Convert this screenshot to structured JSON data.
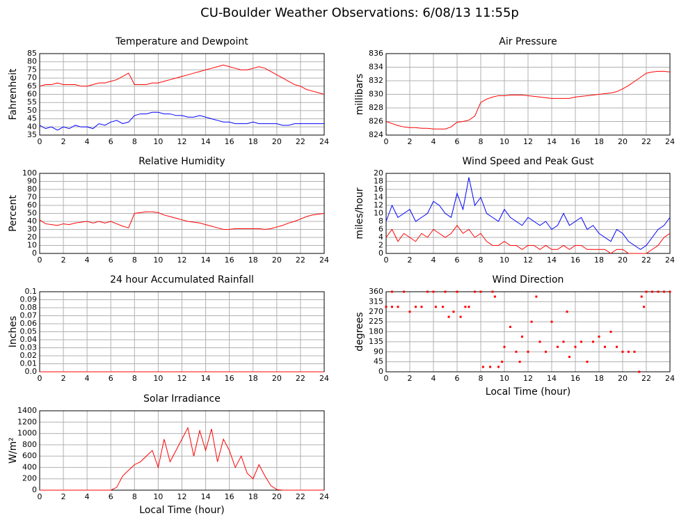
{
  "title": "CU-Boulder Weather Observations: 6/08/13 11:55p",
  "chart_data": [
    {
      "type": "line",
      "title": "Temperature and Dewpoint",
      "ylabel": "Fahrenheit",
      "x": [
        0,
        0.5,
        1,
        1.5,
        2,
        2.5,
        3,
        3.5,
        4,
        4.5,
        5,
        5.5,
        6,
        6.5,
        7,
        7.5,
        8,
        8.5,
        9,
        9.5,
        10,
        10.5,
        11,
        11.5,
        12,
        12.5,
        13,
        13.5,
        14,
        14.5,
        15,
        15.5,
        16,
        16.5,
        17,
        17.5,
        18,
        18.5,
        19,
        19.5,
        20,
        20.5,
        21,
        21.5,
        22,
        22.5,
        23,
        23.5,
        24
      ],
      "series": [
        {
          "color": "#ff0000",
          "values": [
            65,
            66,
            66,
            67,
            66,
            66,
            66,
            65,
            65,
            66,
            67,
            67,
            68,
            69,
            71,
            73,
            66,
            66,
            66,
            67,
            67,
            68,
            69,
            70,
            71,
            72,
            73,
            74,
            75,
            76,
            77,
            78,
            77,
            76,
            75,
            75,
            76,
            77,
            76,
            74,
            72,
            70,
            68,
            66,
            65,
            63,
            62,
            61,
            60
          ]
        },
        {
          "color": "#0000ff",
          "values": [
            41,
            39,
            40,
            38,
            40,
            39,
            41,
            40,
            40,
            39,
            42,
            41,
            43,
            44,
            42,
            43,
            47,
            48,
            48,
            49,
            49,
            48,
            48,
            47,
            47,
            46,
            46,
            47,
            46,
            45,
            44,
            43,
            43,
            42,
            42,
            42,
            43,
            42,
            42,
            42,
            42,
            41,
            41,
            42,
            42,
            42,
            42,
            42,
            42
          ]
        }
      ],
      "xlim": [
        0,
        24
      ],
      "xticks": [
        0,
        2,
        4,
        6,
        8,
        10,
        12,
        14,
        16,
        18,
        20,
        22,
        24
      ],
      "ylim": [
        35,
        85
      ],
      "yticks": [
        35,
        40,
        45,
        50,
        55,
        60,
        65,
        70,
        75,
        80,
        85
      ],
      "grid": true
    },
    {
      "type": "line",
      "title": "Air Pressure",
      "ylabel": "millibars",
      "x": [
        0,
        0.5,
        1,
        1.5,
        2,
        2.5,
        3,
        3.5,
        4,
        4.5,
        5,
        5.5,
        6,
        6.5,
        7,
        7.5,
        8,
        8.5,
        9,
        9.5,
        10,
        10.5,
        11,
        11.5,
        12,
        12.5,
        13,
        13.5,
        14,
        14.5,
        15,
        15.5,
        16,
        16.5,
        17,
        17.5,
        18,
        18.5,
        19,
        19.5,
        20,
        20.5,
        21,
        21.5,
        22,
        22.5,
        23,
        23.5,
        24
      ],
      "series": [
        {
          "color": "#ff0000",
          "values": [
            826,
            825.7,
            825.4,
            825.2,
            825.1,
            825.1,
            825,
            825,
            824.9,
            824.9,
            824.9,
            825.2,
            825.9,
            826,
            826.2,
            826.8,
            828.8,
            829.3,
            829.6,
            829.8,
            829.8,
            829.9,
            829.9,
            829.9,
            829.8,
            829.7,
            829.6,
            829.5,
            829.4,
            829.4,
            829.4,
            829.4,
            829.6,
            829.7,
            829.8,
            829.9,
            830,
            830.1,
            830.2,
            830.4,
            830.8,
            831.3,
            831.9,
            832.5,
            833.1,
            833.3,
            833.4,
            833.4,
            833.3
          ]
        }
      ],
      "xlim": [
        0,
        24
      ],
      "xticks": [
        0,
        2,
        4,
        6,
        8,
        10,
        12,
        14,
        16,
        18,
        20,
        22,
        24
      ],
      "ylim": [
        824,
        836
      ],
      "yticks": [
        824,
        826,
        828,
        830,
        832,
        834,
        836
      ],
      "grid": true
    },
    {
      "type": "line",
      "title": "Relative Humidity",
      "ylabel": "Percent",
      "x": [
        0,
        0.5,
        1,
        1.5,
        2,
        2.5,
        3,
        3.5,
        4,
        4.5,
        5,
        5.5,
        6,
        6.5,
        7,
        7.5,
        8,
        8.5,
        9,
        9.5,
        10,
        10.5,
        11,
        11.5,
        12,
        12.5,
        13,
        13.5,
        14,
        14.5,
        15,
        15.5,
        16,
        16.5,
        17,
        17.5,
        18,
        18.5,
        19,
        19.5,
        20,
        20.5,
        21,
        21.5,
        22,
        22.5,
        23,
        23.5,
        24
      ],
      "series": [
        {
          "color": "#ff0000",
          "values": [
            42,
            37,
            36,
            35,
            37,
            36,
            38,
            39,
            40,
            38,
            40,
            38,
            40,
            37,
            34,
            32,
            50,
            51,
            52,
            52,
            51,
            48,
            46,
            44,
            42,
            40,
            39,
            38,
            36,
            34,
            32,
            30,
            30,
            31,
            31,
            31,
            31,
            31,
            30,
            31,
            33,
            35,
            38,
            40,
            43,
            46,
            48,
            49,
            50
          ]
        }
      ],
      "xlim": [
        0,
        24
      ],
      "xticks": [
        0,
        2,
        4,
        6,
        8,
        10,
        12,
        14,
        16,
        18,
        20,
        22,
        24
      ],
      "ylim": [
        0,
        100
      ],
      "yticks": [
        0,
        10,
        20,
        30,
        40,
        50,
        60,
        70,
        80,
        90,
        100
      ],
      "grid": true
    },
    {
      "type": "line",
      "title": "Wind Speed and Peak Gust",
      "ylabel": "miles/hour",
      "x": [
        0,
        0.5,
        1,
        1.5,
        2,
        2.5,
        3,
        3.5,
        4,
        4.5,
        5,
        5.5,
        6,
        6.5,
        7,
        7.5,
        8,
        8.5,
        9,
        9.5,
        10,
        10.5,
        11,
        11.5,
        12,
        12.5,
        13,
        13.5,
        14,
        14.5,
        15,
        15.5,
        16,
        16.5,
        17,
        17.5,
        18,
        18.5,
        19,
        19.5,
        20,
        20.5,
        21,
        21.5,
        22,
        22.5,
        23,
        23.5,
        24
      ],
      "series": [
        {
          "color": "#0000ff",
          "values": [
            8,
            12,
            9,
            10,
            11,
            8,
            9,
            10,
            13,
            12,
            10,
            9,
            15,
            11,
            19,
            12,
            14,
            10,
            9,
            8,
            11,
            9,
            8,
            7,
            9,
            8,
            7,
            8,
            6,
            7,
            10,
            7,
            8,
            9,
            6,
            7,
            5,
            4,
            3,
            6,
            5,
            3,
            2,
            1,
            2,
            4,
            6,
            7,
            9
          ]
        },
        {
          "color": "#ff0000",
          "values": [
            4,
            6,
            3,
            5,
            4,
            3,
            5,
            4,
            6,
            5,
            4,
            5,
            7,
            5,
            6,
            4,
            5,
            3,
            2,
            2,
            3,
            2,
            2,
            1,
            2,
            2,
            1,
            2,
            1,
            1,
            2,
            1,
            2,
            2,
            1,
            1,
            1,
            1,
            0,
            1,
            1,
            0,
            0,
            0,
            0,
            1,
            2,
            4,
            5
          ]
        }
      ],
      "xlim": [
        0,
        24
      ],
      "xticks": [
        0,
        2,
        4,
        6,
        8,
        10,
        12,
        14,
        16,
        18,
        20,
        22,
        24
      ],
      "ylim": [
        0,
        20
      ],
      "yticks": [
        0,
        2,
        4,
        6,
        8,
        10,
        12,
        14,
        16,
        18,
        20
      ],
      "grid": true
    },
    {
      "type": "line",
      "title": "24 hour Accumulated Rainfall",
      "ylabel": "Inches",
      "x": [
        0,
        24
      ],
      "series": [
        {
          "color": "#ff0000",
          "values": [
            0,
            0
          ]
        }
      ],
      "xlim": [
        0,
        24
      ],
      "xticks": [
        0,
        2,
        4,
        6,
        8,
        10,
        12,
        14,
        16,
        18,
        20,
        22,
        24
      ],
      "ylim": [
        0,
        0.1
      ],
      "yticks": [
        {
          "value": 0,
          "label": "0.0"
        },
        0.01,
        0.02,
        0.03,
        0.04,
        0.05,
        0.06,
        0.07,
        0.08,
        0.09,
        0.1
      ],
      "grid": true
    },
    {
      "type": "scatter",
      "title": "Wind Direction",
      "ylabel": "degrees",
      "xlabel": "Local Time (hour)",
      "x": [
        0,
        0.5,
        0.5,
        1,
        1.5,
        2,
        2.5,
        3,
        3.5,
        4,
        4.2,
        4.8,
        5,
        5.3,
        5.7,
        6,
        6.3,
        6.7,
        7,
        7.5,
        8,
        8.2,
        8.8,
        9,
        9.2,
        9.5,
        9.8,
        10,
        10.5,
        11,
        11.3,
        11.5,
        12,
        12.3,
        12.7,
        13,
        13.5,
        14,
        14.5,
        15,
        15.3,
        15.5,
        16,
        16.5,
        17,
        17.5,
        18,
        18.5,
        19,
        19.5,
        20,
        20.5,
        21,
        21.4,
        21.6,
        21.8,
        22,
        22.5,
        23,
        23.5,
        24
      ],
      "series": [
        {
          "color": "#ff0000",
          "values": [
            292,
            292,
            360,
            292,
            360,
            270,
            292,
            292,
            360,
            360,
            292,
            292,
            360,
            247,
            270,
            360,
            247,
            292,
            292,
            360,
            360,
            22,
            22,
            360,
            338,
            22,
            45,
            112,
            202,
            90,
            45,
            158,
            90,
            225,
            338,
            135,
            90,
            225,
            112,
            135,
            270,
            67,
            112,
            135,
            45,
            135,
            158,
            112,
            180,
            112,
            90,
            90,
            90,
            0,
            338,
            292,
            360,
            360,
            360,
            360,
            360
          ]
        }
      ],
      "xlim": [
        0,
        24
      ],
      "xticks": [
        0,
        2,
        4,
        6,
        8,
        10,
        12,
        14,
        16,
        18,
        20,
        22,
        24
      ],
      "ylim": [
        0,
        360
      ],
      "yticks": [
        0,
        45,
        90,
        135,
        180,
        225,
        270,
        315,
        360
      ],
      "grid": true
    },
    {
      "type": "line",
      "title": "Solar Irradiance",
      "ylabel": "W/m²",
      "xlabel": "Local Time (hour)",
      "x": [
        0,
        0.5,
        1,
        1.5,
        2,
        2.5,
        3,
        3.5,
        4,
        4.5,
        5,
        5.5,
        6,
        6.5,
        7,
        7.5,
        8,
        8.5,
        9,
        9.5,
        10,
        10.5,
        11,
        11.5,
        12,
        12.5,
        13,
        13.5,
        14,
        14.5,
        15,
        15.5,
        16,
        16.5,
        17,
        17.5,
        18,
        18.5,
        19,
        19.5,
        20,
        20.5,
        21,
        21.5,
        22,
        22.5,
        23,
        23.5,
        24
      ],
      "series": [
        {
          "color": "#ff0000",
          "values": [
            0,
            0,
            0,
            0,
            0,
            0,
            0,
            0,
            0,
            0,
            0,
            0,
            0,
            50,
            250,
            350,
            450,
            500,
            600,
            700,
            400,
            900,
            500,
            700,
            900,
            1100,
            600,
            1050,
            700,
            1080,
            500,
            900,
            700,
            400,
            600,
            300,
            200,
            450,
            250,
            80,
            10,
            0,
            0,
            0,
            0,
            0,
            0,
            0,
            0
          ]
        }
      ],
      "xlim": [
        0,
        24
      ],
      "xticks": [
        0,
        2,
        4,
        6,
        8,
        10,
        12,
        14,
        16,
        18,
        20,
        22,
        24
      ],
      "ylim": [
        0,
        1400
      ],
      "yticks": [
        0,
        200,
        400,
        600,
        800,
        1000,
        1200,
        1400
      ],
      "grid": true
    }
  ]
}
